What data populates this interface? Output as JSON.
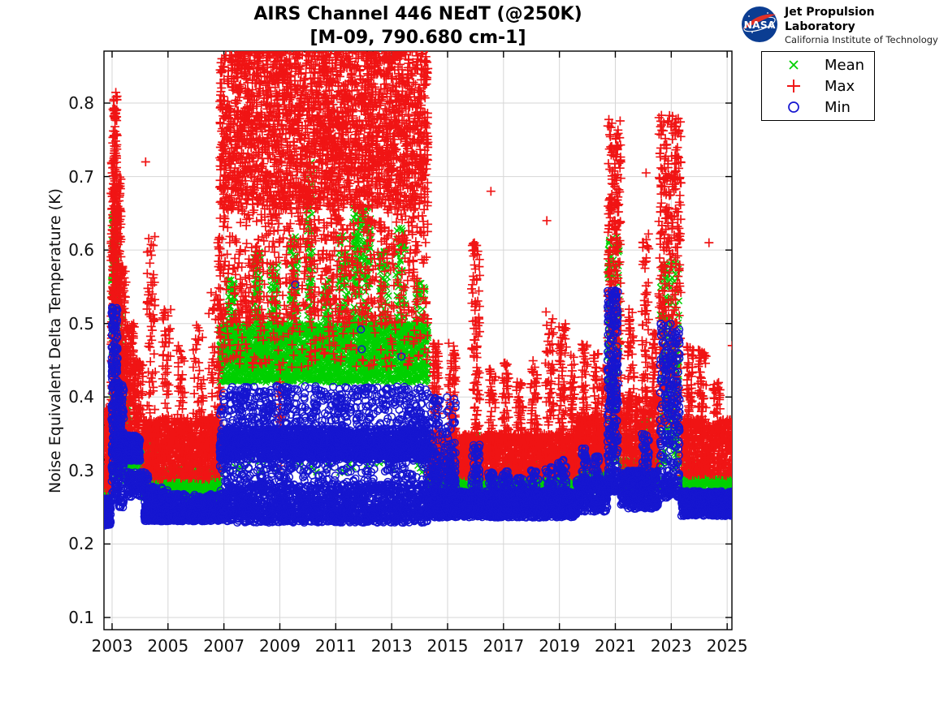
{
  "header": {
    "title": "AIRS Channel 446 NEdT (@250K)",
    "subtitle": "[M-09, 790.680 cm-1]",
    "logo": {
      "org": "NASA",
      "line1": "Jet Propulsion Laboratory",
      "line2": "California Institute of Technology",
      "meatball_blue": "#0b3d92",
      "swoosh_red": "#e23127"
    }
  },
  "chart_data": {
    "type": "scatter",
    "title": "AIRS Channel 446 NEdT (@250K)",
    "subtitle": "[M-09, 790.680 cm-1]",
    "xlabel": "",
    "ylabel": "Noise Equivalent Delta Temperature (K)",
    "xlim": [
      2002.71,
      2025.17
    ],
    "ylim": [
      0.0834,
      0.8707
    ],
    "xticks": [
      2003,
      2005,
      2007,
      2009,
      2011,
      2013,
      2015,
      2017,
      2019,
      2021,
      2023,
      2025
    ],
    "yticks": [
      0.1,
      0.2,
      0.3,
      0.4,
      0.5,
      0.6,
      0.7,
      0.8
    ],
    "grid": true,
    "grid_color": "#d6d6d6",
    "frame_color": "#000000",
    "legend": {
      "position": "outside-top-right",
      "entries": [
        "Mean",
        "Max",
        "Min"
      ]
    },
    "cluster_format": [
      "x_start_year",
      "x_end_year",
      "y_min_K",
      "y_max_K",
      "n_points"
    ],
    "series": [
      {
        "name": "Mean",
        "marker": "x",
        "color": "#00d000",
        "clusters": [
          [
            2002.72,
            2002.96,
            0.258,
            0.29,
            90
          ],
          [
            2002.98,
            2003.18,
            0.3,
            0.655,
            210
          ],
          [
            2003.15,
            2003.35,
            0.29,
            0.52,
            130
          ],
          [
            2003.35,
            2003.6,
            0.285,
            0.4,
            100
          ],
          [
            2003.3,
            2004.1,
            0.29,
            0.335,
            160
          ],
          [
            2004.1,
            2006.85,
            0.262,
            0.302,
            900
          ],
          [
            2004.25,
            2004.55,
            0.295,
            0.335,
            50
          ],
          [
            2005.6,
            2006.85,
            0.245,
            0.268,
            180
          ],
          [
            2006.85,
            2014.3,
            0.42,
            0.5,
            2600
          ],
          [
            2006.85,
            2014.3,
            0.295,
            0.335,
            70
          ],
          [
            2007.15,
            2007.4,
            0.5,
            0.56,
            40
          ],
          [
            2008.05,
            2008.32,
            0.5,
            0.6,
            55
          ],
          [
            2008.65,
            2008.95,
            0.5,
            0.58,
            50
          ],
          [
            2009.35,
            2009.65,
            0.5,
            0.62,
            60
          ],
          [
            2009.95,
            2010.18,
            0.5,
            0.72,
            70
          ],
          [
            2010.55,
            2010.8,
            0.5,
            0.56,
            35
          ],
          [
            2011.1,
            2011.45,
            0.5,
            0.62,
            60
          ],
          [
            2011.6,
            2012.25,
            0.5,
            0.66,
            170
          ],
          [
            2012.55,
            2012.9,
            0.5,
            0.6,
            50
          ],
          [
            2013.15,
            2013.5,
            0.5,
            0.63,
            60
          ],
          [
            2013.85,
            2014.2,
            0.48,
            0.56,
            45
          ],
          [
            2014.3,
            2019.6,
            0.258,
            0.296,
            1400
          ],
          [
            2014.45,
            2014.7,
            0.29,
            0.32,
            40
          ],
          [
            2015.0,
            2015.3,
            0.29,
            0.325,
            40
          ],
          [
            2015.85,
            2016.15,
            0.29,
            0.35,
            50
          ],
          [
            2016.95,
            2017.22,
            0.285,
            0.31,
            35
          ],
          [
            2017.95,
            2018.25,
            0.285,
            0.31,
            35
          ],
          [
            2018.5,
            2018.8,
            0.285,
            0.32,
            40
          ],
          [
            2018.95,
            2019.25,
            0.29,
            0.33,
            40
          ],
          [
            2019.6,
            2020.72,
            0.272,
            0.305,
            280
          ],
          [
            2019.8,
            2020.0,
            0.3,
            0.345,
            35
          ],
          [
            2020.2,
            2020.42,
            0.3,
            0.335,
            30
          ],
          [
            2020.72,
            2021.15,
            0.31,
            0.62,
            160
          ],
          [
            2021.2,
            2022.55,
            0.275,
            0.315,
            360
          ],
          [
            2021.95,
            2022.2,
            0.315,
            0.37,
            40
          ],
          [
            2022.6,
            2023.3,
            0.3,
            0.585,
            170
          ],
          [
            2023.35,
            2025.25,
            0.255,
            0.295,
            500
          ],
          [
            2023.55,
            2023.8,
            0.29,
            0.315,
            30
          ],
          [
            2023.95,
            2024.25,
            0.285,
            0.31,
            25
          ]
        ],
        "points": [
          [
            2010.05,
            0.715
          ],
          [
            2003.05,
            0.648
          ]
        ]
      },
      {
        "name": "Max",
        "marker": "+",
        "color": "#f01414",
        "clusters": [
          [
            2002.72,
            2002.96,
            0.27,
            0.385,
            130
          ],
          [
            2002.96,
            2003.06,
            0.33,
            0.72,
            90
          ],
          [
            2003.02,
            2003.18,
            0.36,
            0.815,
            240
          ],
          [
            2003.15,
            2003.32,
            0.34,
            0.7,
            170
          ],
          [
            2003.3,
            2003.5,
            0.33,
            0.58,
            130
          ],
          [
            2003.5,
            2003.8,
            0.345,
            0.5,
            120
          ],
          [
            2003.8,
            2004.1,
            0.325,
            0.45,
            110
          ],
          [
            2004.1,
            2006.85,
            0.288,
            0.372,
            950
          ],
          [
            2004.25,
            2004.55,
            0.37,
            0.625,
            60
          ],
          [
            2004.8,
            2005.1,
            0.36,
            0.52,
            45
          ],
          [
            2005.3,
            2005.6,
            0.35,
            0.47,
            35
          ],
          [
            2005.9,
            2006.3,
            0.34,
            0.5,
            45
          ],
          [
            2006.45,
            2006.85,
            0.35,
            0.55,
            50
          ],
          [
            2006.78,
            2006.9,
            0.3,
            0.68,
            45
          ],
          [
            2006.85,
            2014.3,
            0.655,
            0.88,
            2900
          ],
          [
            2006.85,
            2014.3,
            0.5,
            0.655,
            700
          ],
          [
            2006.85,
            2014.3,
            0.44,
            0.52,
            180
          ],
          [
            2008.95,
            2009.08,
            0.3,
            0.45,
            30
          ],
          [
            2014.3,
            2019.6,
            0.292,
            0.35,
            1500
          ],
          [
            2014.45,
            2014.7,
            0.34,
            0.475,
            70
          ],
          [
            2015.0,
            2015.3,
            0.34,
            0.475,
            70
          ],
          [
            2015.85,
            2016.15,
            0.34,
            0.61,
            90
          ],
          [
            2016.45,
            2016.72,
            0.33,
            0.44,
            50
          ],
          [
            2016.95,
            2017.22,
            0.33,
            0.45,
            55
          ],
          [
            2017.45,
            2017.72,
            0.32,
            0.43,
            45
          ],
          [
            2017.95,
            2018.25,
            0.33,
            0.45,
            50
          ],
          [
            2018.5,
            2018.8,
            0.33,
            0.52,
            60
          ],
          [
            2018.95,
            2019.25,
            0.34,
            0.5,
            65
          ],
          [
            2019.6,
            2020.72,
            0.3,
            0.375,
            320
          ],
          [
            2019.38,
            2019.55,
            0.35,
            0.46,
            40
          ],
          [
            2019.8,
            2020.0,
            0.35,
            0.475,
            45
          ],
          [
            2020.2,
            2020.42,
            0.34,
            0.46,
            40
          ],
          [
            2020.5,
            2020.68,
            0.34,
            0.44,
            30
          ],
          [
            2020.72,
            2021.2,
            0.38,
            0.782,
            270
          ],
          [
            2020.72,
            2021.2,
            0.32,
            0.38,
            80
          ],
          [
            2021.2,
            2022.55,
            0.295,
            0.4,
            400
          ],
          [
            2021.45,
            2021.68,
            0.38,
            0.52,
            45
          ],
          [
            2021.95,
            2022.2,
            0.38,
            0.625,
            60
          ],
          [
            2022.3,
            2022.5,
            0.36,
            0.5,
            40
          ],
          [
            2022.55,
            2023.35,
            0.36,
            0.787,
            330
          ],
          [
            2023.35,
            2025.25,
            0.293,
            0.37,
            560
          ],
          [
            2023.55,
            2023.8,
            0.36,
            0.47,
            45
          ],
          [
            2023.95,
            2024.25,
            0.35,
            0.465,
            50
          ],
          [
            2024.5,
            2024.75,
            0.33,
            0.42,
            35
          ]
        ],
        "points": [
          [
            2004.2,
            0.72
          ],
          [
            2015.95,
            0.6
          ],
          [
            2016.55,
            0.68
          ],
          [
            2018.55,
            0.64
          ],
          [
            2022.1,
            0.705
          ],
          [
            2024.35,
            0.61
          ],
          [
            2025.18,
            0.47
          ]
        ]
      },
      {
        "name": "Min",
        "marker": "o",
        "color": "#1616d0",
        "clusters": [
          [
            2002.72,
            2002.96,
            0.225,
            0.262,
            110
          ],
          [
            2002.98,
            2003.2,
            0.26,
            0.523,
            230
          ],
          [
            2003.18,
            2003.42,
            0.25,
            0.42,
            150
          ],
          [
            2003.1,
            2004.0,
            0.313,
            0.348,
            260
          ],
          [
            2003.55,
            2004.3,
            0.263,
            0.298,
            130
          ],
          [
            2004.3,
            2005.0,
            0.253,
            0.278,
            90
          ],
          [
            2004.15,
            2006.85,
            0.231,
            0.253,
            850
          ],
          [
            2004.15,
            2006.85,
            0.253,
            0.268,
            150
          ],
          [
            2006.85,
            2014.3,
            0.315,
            0.357,
            2100
          ],
          [
            2006.85,
            2014.3,
            0.357,
            0.415,
            520
          ],
          [
            2006.85,
            2014.3,
            0.282,
            0.315,
            220
          ],
          [
            2006.85,
            2014.3,
            0.253,
            0.282,
            750
          ],
          [
            2006.85,
            2014.3,
            0.229,
            0.253,
            850
          ],
          [
            2014.3,
            2019.6,
            0.236,
            0.272,
            1600
          ],
          [
            2014.3,
            2015.3,
            0.33,
            0.4,
            70
          ],
          [
            2014.3,
            2015.3,
            0.272,
            0.33,
            90
          ],
          [
            2014.45,
            2014.7,
            0.27,
            0.31,
            45
          ],
          [
            2015.0,
            2015.3,
            0.27,
            0.315,
            45
          ],
          [
            2015.85,
            2016.15,
            0.27,
            0.335,
            55
          ],
          [
            2016.45,
            2016.72,
            0.265,
            0.3,
            40
          ],
          [
            2016.95,
            2017.22,
            0.265,
            0.3,
            40
          ],
          [
            2017.45,
            2017.72,
            0.26,
            0.29,
            35
          ],
          [
            2017.95,
            2018.25,
            0.265,
            0.3,
            40
          ],
          [
            2018.5,
            2018.8,
            0.265,
            0.305,
            40
          ],
          [
            2018.95,
            2019.25,
            0.27,
            0.315,
            45
          ],
          [
            2019.6,
            2020.72,
            0.244,
            0.288,
            300
          ],
          [
            2019.8,
            2020.0,
            0.285,
            0.33,
            40
          ],
          [
            2020.2,
            2020.42,
            0.28,
            0.32,
            35
          ],
          [
            2020.72,
            2021.1,
            0.3,
            0.545,
            240
          ],
          [
            2020.72,
            2021.2,
            0.27,
            0.3,
            70
          ],
          [
            2021.2,
            2022.55,
            0.248,
            0.3,
            420
          ],
          [
            2021.95,
            2022.2,
            0.3,
            0.35,
            40
          ],
          [
            2022.6,
            2023.3,
            0.29,
            0.5,
            230
          ],
          [
            2022.6,
            2023.3,
            0.262,
            0.29,
            80
          ],
          [
            2023.35,
            2025.25,
            0.238,
            0.272,
            540
          ]
        ],
        "points": [
          [
            2009.55,
            0.553
          ],
          [
            2011.9,
            0.492
          ],
          [
            2011.93,
            0.465
          ],
          [
            2013.35,
            0.455
          ],
          [
            2021.0,
            0.545
          ]
        ]
      }
    ]
  }
}
